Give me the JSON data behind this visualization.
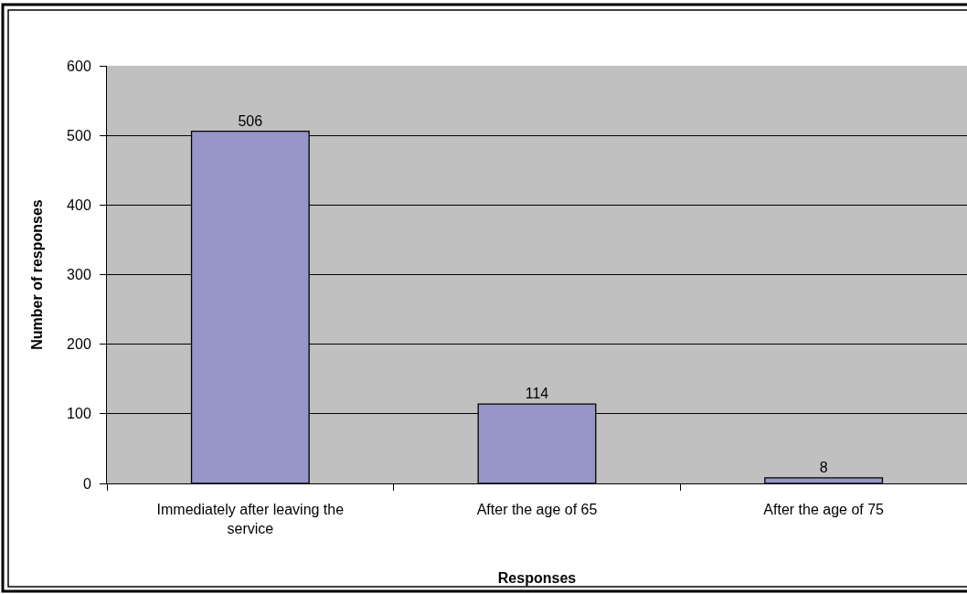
{
  "chart_data": {
    "type": "bar",
    "xlabel": "Responses",
    "ylabel": "Number of responses",
    "categories": [
      "Immediately after leaving the service",
      "After the age of 65",
      "After the age of 75"
    ],
    "values": [
      506,
      114,
      8
    ],
    "color": "#9696c8",
    "ylim": [
      0,
      600
    ],
    "yticks": [
      0,
      100,
      200,
      300,
      400,
      500,
      600
    ],
    "grid": "y",
    "data_labels": true
  }
}
